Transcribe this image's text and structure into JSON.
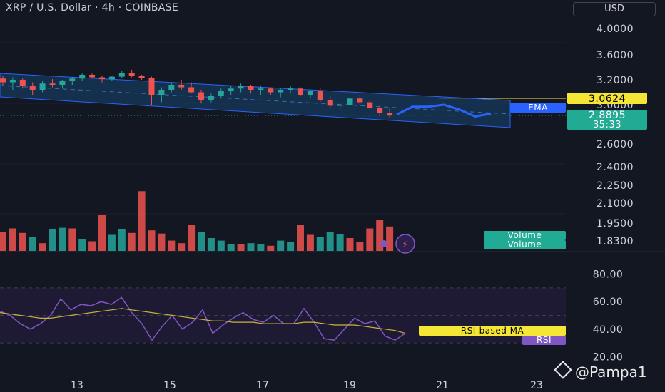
{
  "header": {
    "title": "XRP / U.S. Dollar · 4h · COINBASE",
    "currency_button": "USD"
  },
  "watermark": "@Pampa1",
  "colors": {
    "background": "#131722",
    "up": "#26a69a",
    "down": "#ef5350",
    "channel_fill": "#163a5c",
    "channel_line": "#2962ff",
    "projection": "#2962ff",
    "rsi_line": "#7e57c2",
    "rsi_ma": "#c9b23a",
    "ema_badge": "#2962ff",
    "price_badge": "#22ab94",
    "hline_badge": "#f5e535"
  },
  "chart_data": {
    "type": "candlestick",
    "ohlc_series": [
      [
        3.22,
        3.26,
        3.15,
        3.18
      ],
      [
        3.18,
        3.24,
        3.12,
        3.2
      ],
      [
        3.2,
        3.22,
        3.13,
        3.15
      ],
      [
        3.15,
        3.18,
        3.08,
        3.12
      ],
      [
        3.12,
        3.19,
        3.1,
        3.17
      ],
      [
        3.17,
        3.21,
        3.14,
        3.16
      ],
      [
        3.16,
        3.2,
        3.13,
        3.19
      ],
      [
        3.19,
        3.24,
        3.16,
        3.22
      ],
      [
        3.22,
        3.3,
        3.19,
        3.28
      ],
      [
        3.28,
        3.3,
        3.22,
        3.24
      ],
      [
        3.24,
        3.27,
        3.18,
        3.21
      ],
      [
        3.21,
        3.26,
        3.19,
        3.25
      ],
      [
        3.25,
        3.34,
        3.23,
        3.31
      ],
      [
        3.31,
        3.36,
        3.24,
        3.26
      ],
      [
        3.26,
        3.28,
        3.2,
        3.23
      ],
      [
        3.23,
        3.25,
        3.0,
        3.08
      ],
      [
        3.08,
        3.14,
        3.02,
        3.12
      ],
      [
        3.12,
        3.18,
        3.1,
        3.16
      ],
      [
        3.16,
        3.2,
        3.12,
        3.14
      ],
      [
        3.14,
        3.18,
        3.09,
        3.1
      ],
      [
        3.1,
        3.12,
        3.01,
        3.04
      ],
      [
        3.04,
        3.09,
        3.02,
        3.07
      ],
      [
        3.07,
        3.13,
        3.05,
        3.11
      ],
      [
        3.11,
        3.15,
        3.08,
        3.13
      ],
      [
        3.13,
        3.17,
        3.1,
        3.15
      ],
      [
        3.15,
        3.16,
        3.09,
        3.12
      ],
      [
        3.12,
        3.15,
        3.08,
        3.13
      ],
      [
        3.13,
        3.14,
        3.08,
        3.1
      ],
      [
        3.1,
        3.13,
        3.06,
        3.12
      ],
      [
        3.12,
        3.15,
        3.09,
        3.13
      ],
      [
        3.13,
        3.14,
        3.07,
        3.08
      ],
      [
        3.08,
        3.12,
        3.05,
        3.11
      ],
      [
        3.11,
        3.13,
        3.02,
        3.04
      ],
      [
        3.04,
        3.07,
        2.96,
        2.99
      ],
      [
        2.99,
        3.02,
        2.94,
        3.0
      ],
      [
        3.0,
        3.06,
        2.98,
        3.05
      ],
      [
        3.05,
        3.08,
        3.0,
        3.02
      ],
      [
        3.02,
        3.04,
        2.95,
        2.97
      ],
      [
        2.97,
        3.0,
        2.88,
        2.92
      ],
      [
        2.92,
        2.96,
        2.87,
        2.89
      ]
    ],
    "volume_series": [
      [
        0.3,
        "down"
      ],
      [
        0.35,
        "down"
      ],
      [
        0.28,
        "down"
      ],
      [
        0.22,
        "up"
      ],
      [
        0.12,
        "down"
      ],
      [
        0.34,
        "up"
      ],
      [
        0.36,
        "up"
      ],
      [
        0.35,
        "down"
      ],
      [
        0.18,
        "up"
      ],
      [
        0.15,
        "down"
      ],
      [
        0.56,
        "down"
      ],
      [
        0.25,
        "up"
      ],
      [
        0.34,
        "up"
      ],
      [
        0.28,
        "down"
      ],
      [
        0.93,
        "down"
      ],
      [
        0.32,
        "down"
      ],
      [
        0.27,
        "down"
      ],
      [
        0.16,
        "down"
      ],
      [
        0.12,
        "down"
      ],
      [
        0.4,
        "down"
      ],
      [
        0.3,
        "up"
      ],
      [
        0.2,
        "up"
      ],
      [
        0.16,
        "up"
      ],
      [
        0.11,
        "up"
      ],
      [
        0.1,
        "down"
      ],
      [
        0.12,
        "up"
      ],
      [
        0.1,
        "up"
      ],
      [
        0.08,
        "down"
      ],
      [
        0.16,
        "up"
      ],
      [
        0.14,
        "up"
      ],
      [
        0.4,
        "down"
      ],
      [
        0.25,
        "down"
      ],
      [
        0.22,
        "up"
      ],
      [
        0.3,
        "up"
      ],
      [
        0.26,
        "up"
      ],
      [
        0.2,
        "down"
      ],
      [
        0.14,
        "down"
      ],
      [
        0.35,
        "down"
      ],
      [
        0.48,
        "down"
      ],
      [
        0.38,
        "down"
      ]
    ],
    "rsi_series": [
      53,
      50,
      44,
      40,
      44,
      50,
      62,
      54,
      58,
      57,
      60,
      58,
      63,
      52,
      44,
      32,
      42,
      50,
      40,
      45,
      54,
      37,
      43,
      48,
      52,
      47,
      45,
      50,
      44,
      44,
      55,
      45,
      33,
      32,
      40,
      48,
      44,
      46,
      35,
      32,
      37
    ],
    "rsi_ma_series": [
      52,
      51,
      50,
      49,
      48,
      48,
      49,
      50,
      51,
      52,
      53,
      54,
      55,
      54,
      53,
      52,
      51,
      50,
      49,
      48,
      47,
      46,
      46,
      45,
      45,
      45,
      44,
      44,
      44,
      44,
      45,
      45,
      44,
      43,
      43,
      43,
      42,
      41,
      40,
      39,
      37
    ],
    "projection_path": [
      2.9,
      2.98,
      2.98,
      3.0,
      2.95,
      2.88,
      2.91
    ],
    "ylim": [
      1.75,
      4.15
    ],
    "y_ticks": [
      "4.0000",
      "3.6000",
      "3.2000",
      "3.0000",
      "2.6000",
      "2.4000",
      "2.2500",
      "2.1000",
      "1.9500",
      "1.8300"
    ],
    "rsi_ylim": [
      15,
      85
    ],
    "rsi_ticks": [
      "80.00",
      "60.00",
      "40.00",
      "20.00"
    ],
    "rsi_band": [
      30,
      70
    ],
    "x_ticks": [
      "13",
      "15",
      "17",
      "19",
      "21",
      "23"
    ],
    "badges": {
      "hline_value": "3.0624",
      "ema_label": "EMA",
      "price_value": "2.8895",
      "countdown": "35:33",
      "volume_label_1": "Volume",
      "volume_label_2": "Volume",
      "rsi_ma_label": "RSI-based MA",
      "rsi_label": "RSI"
    }
  }
}
